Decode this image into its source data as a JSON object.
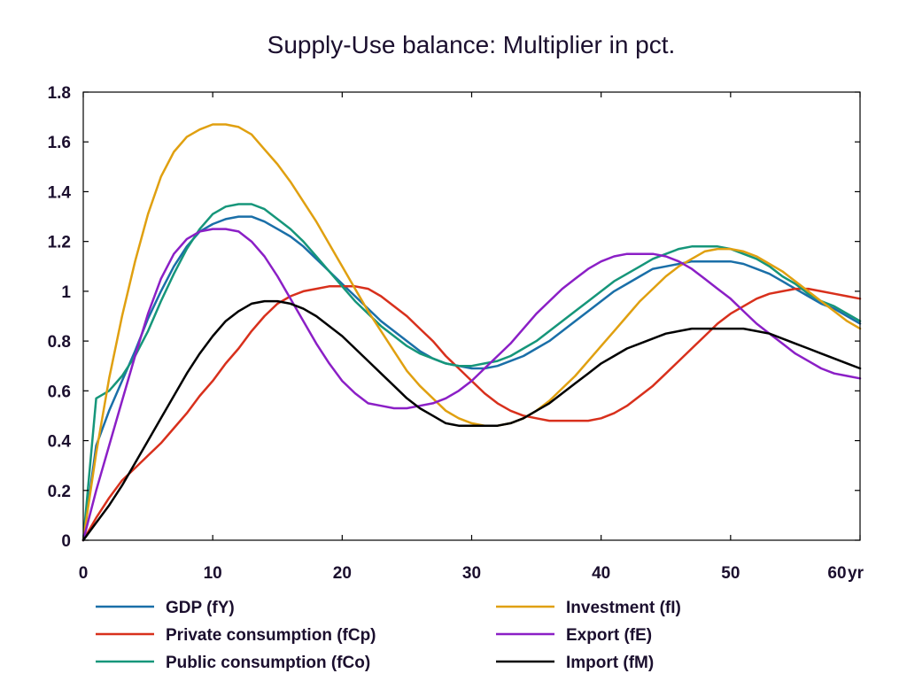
{
  "chart_data": {
    "type": "line",
    "title": "Supply-Use balance: Multiplier in pct.",
    "xlabel": "",
    "ylabel": "",
    "x_unit_label": "yr",
    "xlim": [
      0,
      60
    ],
    "ylim": [
      0,
      1.8
    ],
    "x_ticks": [
      0,
      10,
      20,
      30,
      40,
      50,
      60
    ],
    "y_ticks": [
      0,
      0.2,
      0.4,
      0.6,
      0.8,
      1,
      1.2,
      1.4,
      1.6,
      1.8
    ],
    "grid": false,
    "legend_position": "bottom",
    "x": [
      0,
      1,
      2,
      3,
      4,
      5,
      6,
      7,
      8,
      9,
      10,
      11,
      12,
      13,
      14,
      15,
      16,
      17,
      18,
      19,
      20,
      21,
      22,
      23,
      24,
      25,
      26,
      27,
      28,
      29,
      30,
      31,
      32,
      33,
      34,
      35,
      36,
      37,
      38,
      39,
      40,
      41,
      42,
      43,
      44,
      45,
      46,
      47,
      48,
      49,
      50,
      51,
      52,
      53,
      54,
      55,
      56,
      57,
      58,
      59,
      60
    ],
    "series": [
      {
        "name": "GDP (fY)",
        "color": "#1a6fa8",
        "values": [
          0.0,
          0.38,
          0.52,
          0.64,
          0.76,
          0.89,
          1.0,
          1.1,
          1.18,
          1.24,
          1.27,
          1.29,
          1.3,
          1.3,
          1.28,
          1.25,
          1.22,
          1.18,
          1.13,
          1.08,
          1.03,
          0.98,
          0.93,
          0.88,
          0.84,
          0.8,
          0.76,
          0.73,
          0.71,
          0.7,
          0.69,
          0.69,
          0.7,
          0.72,
          0.74,
          0.77,
          0.8,
          0.84,
          0.88,
          0.92,
          0.96,
          1.0,
          1.03,
          1.06,
          1.09,
          1.1,
          1.11,
          1.12,
          1.12,
          1.12,
          1.12,
          1.11,
          1.09,
          1.07,
          1.04,
          1.01,
          0.98,
          0.95,
          0.93,
          0.9,
          0.87
        ]
      },
      {
        "name": "Private consumption (fCp)",
        "color": "#d8301c",
        "values": [
          0.0,
          0.09,
          0.17,
          0.24,
          0.29,
          0.34,
          0.39,
          0.45,
          0.51,
          0.58,
          0.64,
          0.71,
          0.77,
          0.84,
          0.9,
          0.95,
          0.98,
          1.0,
          1.01,
          1.02,
          1.02,
          1.02,
          1.01,
          0.98,
          0.94,
          0.9,
          0.85,
          0.8,
          0.74,
          0.69,
          0.64,
          0.59,
          0.55,
          0.52,
          0.5,
          0.49,
          0.48,
          0.48,
          0.48,
          0.48,
          0.49,
          0.51,
          0.54,
          0.58,
          0.62,
          0.67,
          0.72,
          0.77,
          0.82,
          0.87,
          0.91,
          0.94,
          0.97,
          0.99,
          1.0,
          1.01,
          1.01,
          1.0,
          0.99,
          0.98,
          0.97
        ]
      },
      {
        "name": "Public consumption (fCo)",
        "color": "#16967a",
        "values": [
          0.0,
          0.57,
          0.6,
          0.66,
          0.74,
          0.84,
          0.96,
          1.07,
          1.17,
          1.25,
          1.31,
          1.34,
          1.35,
          1.35,
          1.33,
          1.29,
          1.25,
          1.2,
          1.14,
          1.08,
          1.02,
          0.96,
          0.91,
          0.86,
          0.82,
          0.78,
          0.75,
          0.73,
          0.71,
          0.7,
          0.7,
          0.71,
          0.72,
          0.74,
          0.77,
          0.8,
          0.84,
          0.88,
          0.92,
          0.96,
          1.0,
          1.04,
          1.07,
          1.1,
          1.13,
          1.15,
          1.17,
          1.18,
          1.18,
          1.18,
          1.17,
          1.15,
          1.13,
          1.1,
          1.06,
          1.03,
          0.99,
          0.96,
          0.94,
          0.91,
          0.88
        ]
      },
      {
        "name": "Investment (fI)",
        "color": "#e0a010",
        "values": [
          0.0,
          0.35,
          0.65,
          0.9,
          1.12,
          1.31,
          1.46,
          1.56,
          1.62,
          1.65,
          1.67,
          1.67,
          1.66,
          1.63,
          1.57,
          1.51,
          1.44,
          1.36,
          1.28,
          1.19,
          1.1,
          1.01,
          0.92,
          0.84,
          0.76,
          0.68,
          0.62,
          0.57,
          0.52,
          0.49,
          0.47,
          0.46,
          0.46,
          0.47,
          0.49,
          0.52,
          0.56,
          0.61,
          0.66,
          0.72,
          0.78,
          0.84,
          0.9,
          0.96,
          1.01,
          1.06,
          1.1,
          1.13,
          1.16,
          1.17,
          1.17,
          1.16,
          1.14,
          1.11,
          1.08,
          1.04,
          1.0,
          0.96,
          0.92,
          0.88,
          0.85
        ]
      },
      {
        "name": "Export (fE)",
        "color": "#8b1fc6",
        "values": [
          0.0,
          0.2,
          0.38,
          0.56,
          0.74,
          0.91,
          1.05,
          1.15,
          1.21,
          1.24,
          1.25,
          1.25,
          1.24,
          1.2,
          1.14,
          1.06,
          0.97,
          0.88,
          0.79,
          0.71,
          0.64,
          0.59,
          0.55,
          0.54,
          0.53,
          0.53,
          0.54,
          0.55,
          0.57,
          0.6,
          0.64,
          0.69,
          0.74,
          0.79,
          0.85,
          0.91,
          0.96,
          1.01,
          1.05,
          1.09,
          1.12,
          1.14,
          1.15,
          1.15,
          1.15,
          1.14,
          1.12,
          1.09,
          1.05,
          1.01,
          0.97,
          0.92,
          0.87,
          0.83,
          0.79,
          0.75,
          0.72,
          0.69,
          0.67,
          0.66,
          0.65
        ]
      },
      {
        "name": "Import (fM)",
        "color": "#000000",
        "values": [
          0.0,
          0.07,
          0.14,
          0.22,
          0.31,
          0.4,
          0.49,
          0.58,
          0.67,
          0.75,
          0.82,
          0.88,
          0.92,
          0.95,
          0.96,
          0.96,
          0.95,
          0.93,
          0.9,
          0.86,
          0.82,
          0.77,
          0.72,
          0.67,
          0.62,
          0.57,
          0.53,
          0.5,
          0.47,
          0.46,
          0.46,
          0.46,
          0.46,
          0.47,
          0.49,
          0.52,
          0.55,
          0.59,
          0.63,
          0.67,
          0.71,
          0.74,
          0.77,
          0.79,
          0.81,
          0.83,
          0.84,
          0.85,
          0.85,
          0.85,
          0.85,
          0.85,
          0.84,
          0.83,
          0.81,
          0.79,
          0.77,
          0.75,
          0.73,
          0.71,
          0.69
        ]
      }
    ]
  }
}
